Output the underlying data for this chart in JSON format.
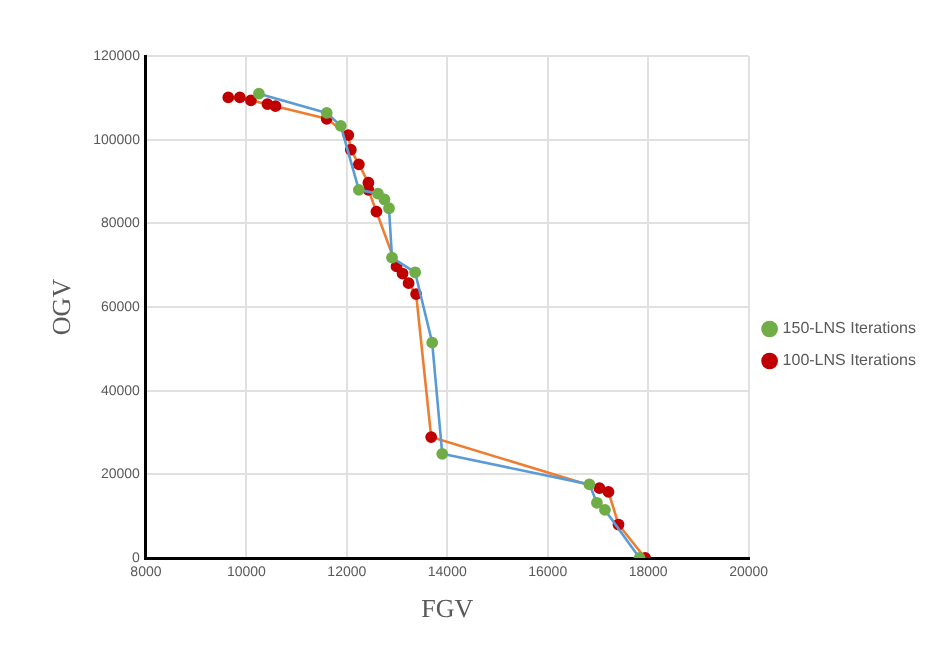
{
  "chart_data": {
    "type": "line",
    "xlabel": "FGV",
    "ylabel": "OGV",
    "xlim": [
      8000,
      20000
    ],
    "xticks": [
      8000,
      10000,
      12000,
      14000,
      16000,
      18000,
      20000
    ],
    "ylim": [
      0,
      120000
    ],
    "yticks": [
      0,
      20000,
      40000,
      60000,
      80000,
      100000,
      120000
    ],
    "grid": true,
    "legend": "right",
    "marker": "circle",
    "line_style": "solid",
    "series": [
      {
        "name": "150-LNS Iterations",
        "color": "#5b9bd5",
        "x": [
          10250,
          11600,
          11880,
          12240,
          12620,
          12750,
          12840,
          12900,
          13360,
          13700,
          13900,
          16830,
          16980,
          17140,
          17830
        ],
        "values": [
          111000,
          106400,
          103300,
          88000,
          87100,
          85700,
          83600,
          71800,
          68300,
          51500,
          24900,
          17600,
          13200,
          11500,
          0
        ]
      },
      {
        "name": "100-LNS Iterations",
        "color": "#ed7d31",
        "x": [
          9640,
          9870,
          10090,
          10420,
          10580,
          11600,
          12030,
          12080,
          12240,
          12430,
          12430,
          12590,
          12990,
          13110,
          13230,
          13380,
          13680,
          17030,
          17210,
          17410,
          17940
        ],
        "values": [
          110100,
          110100,
          109400,
          108500,
          108000,
          105000,
          101100,
          97600,
          94100,
          89700,
          88000,
          82800,
          69700,
          68000,
          65700,
          63100,
          28900,
          16700,
          15800,
          8000,
          0
        ]
      }
    ]
  }
}
